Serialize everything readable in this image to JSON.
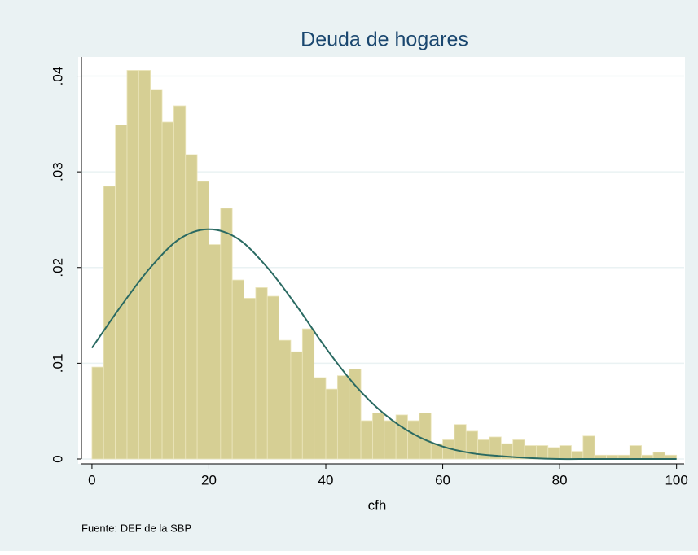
{
  "chart_data": {
    "type": "histogram",
    "title": "Deuda de hogares",
    "xlabel": "cfh",
    "note": "Fuente:  DEF de la SBP",
    "bins": [
      0,
      2,
      4,
      6,
      8,
      10,
      12,
      14,
      16,
      18,
      20,
      22,
      24,
      26,
      28,
      30,
      32,
      34,
      36,
      38,
      40,
      42,
      44,
      46,
      48,
      50,
      52,
      54,
      56,
      58,
      60,
      62,
      64,
      66,
      68,
      70,
      72,
      74,
      76,
      78,
      80,
      82,
      84,
      86,
      88,
      90,
      92,
      94,
      96,
      98,
      100
    ],
    "values": [
      0.0096,
      0.0285,
      0.0349,
      0.0406,
      0.0406,
      0.0386,
      0.0352,
      0.0369,
      0.0318,
      0.029,
      0.0224,
      0.0262,
      0.0187,
      0.0168,
      0.0179,
      0.017,
      0.0124,
      0.0112,
      0.0136,
      0.0085,
      0.0073,
      0.0087,
      0.0094,
      0.004,
      0.0048,
      0.004,
      0.0046,
      0.004,
      0.0048,
      0.0016,
      0.002,
      0.0036,
      0.0029,
      0.002,
      0.0023,
      0.0016,
      0.002,
      0.0014,
      0.0014,
      0.0012,
      0.0014,
      0.0008,
      0.0024,
      0.0004,
      0.0004,
      0.0004,
      0.0014,
      0.0004,
      0.0007,
      0.0004
    ],
    "color": "#d6cf94",
    "density": {
      "x": [
        0,
        5,
        10,
        15,
        20,
        25,
        30,
        35,
        40,
        45,
        50,
        55,
        60,
        65,
        70,
        75,
        80,
        85,
        90,
        95,
        100
      ],
      "values": [
        0.0116,
        0.016,
        0.02,
        0.023,
        0.024,
        0.023,
        0.02,
        0.016,
        0.0116,
        0.0077,
        0.0047,
        0.0026,
        0.0013,
        0.0006,
        0.0003,
        0.0001,
        0,
        0,
        0,
        0,
        0
      ],
      "color": "#2a6a62"
    },
    "xlim": [
      -1.8,
      101.3
    ],
    "ylim": [
      0,
      0.042
    ],
    "xticks": [
      0,
      20,
      40,
      60,
      80,
      100
    ],
    "yticks": [
      {
        "value": 0,
        "label": "0"
      },
      {
        "value": 0.01,
        "label": ".01"
      },
      {
        "value": 0.02,
        "label": ".02"
      },
      {
        "value": 0.03,
        "label": ".03"
      },
      {
        "value": 0.04,
        "label": ".04"
      }
    ],
    "grid": true
  }
}
